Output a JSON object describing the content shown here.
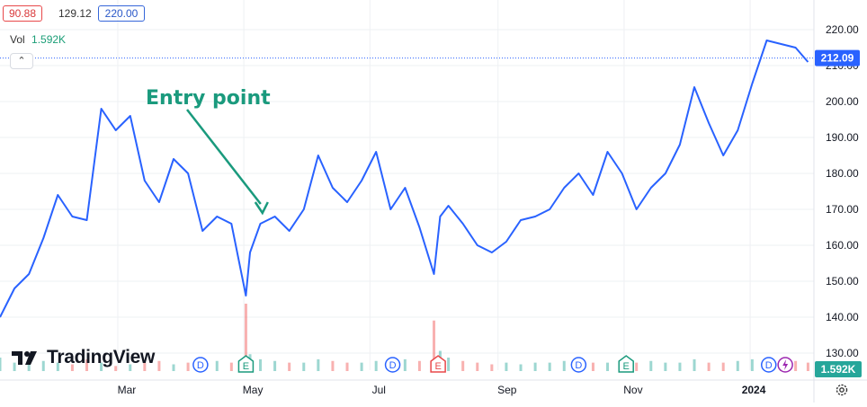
{
  "header": {
    "low_value": "90.88",
    "mid_value": "129.12",
    "high_value": "220.00",
    "vol_label": "Vol",
    "vol_value": "1.592K",
    "collapse_icon": "chevron-up-icon"
  },
  "annotation": {
    "text": "Entry point",
    "color": "#1a9a7d",
    "x": "2023-05-10",
    "y": 170
  },
  "brand": {
    "name": "TradingView",
    "logo_icon": "tradingview-logo-icon"
  },
  "price_label": {
    "value": "212.09",
    "bg": "#2962ff"
  },
  "vol_label": {
    "value": "1.592K",
    "bg": "#26a69a"
  },
  "settings_icon": "gear-icon",
  "events": [
    {
      "type": "D",
      "x": "2023-04-10"
    },
    {
      "type": "E",
      "x": "2023-05-02"
    },
    {
      "type": "D",
      "x": "2023-07-12"
    },
    {
      "type": "E",
      "x": "2023-08-03"
    },
    {
      "type": "D",
      "x": "2023-10-10"
    },
    {
      "type": "E",
      "x": "2023-11-02"
    },
    {
      "type": "D",
      "x": "2024-01-10"
    },
    {
      "type": "lightning",
      "x": "2024-01-18"
    }
  ],
  "chart_data": {
    "type": "line",
    "title": "",
    "xlabel": "",
    "ylabel": "",
    "x_ticks": [
      "Mar",
      "May",
      "Jul",
      "Sep",
      "Nov",
      "2024"
    ],
    "x_tick_dates": [
      "2023-03-01",
      "2023-05-01",
      "2023-07-01",
      "2023-09-01",
      "2023-11-01",
      "2024-01-01"
    ],
    "y_ticks": [
      130,
      140,
      150,
      160,
      170,
      180,
      190,
      200,
      210,
      220
    ],
    "ylim": [
      127.5,
      222
    ],
    "xlim": [
      "2023-01-03",
      "2024-01-31"
    ],
    "last_value": 212.09,
    "line_color": "#2962ff",
    "grid": true,
    "series": [
      {
        "x": [
          "2023-01-03",
          "2023-01-10",
          "2023-01-17",
          "2023-01-24",
          "2023-01-31",
          "2023-02-07",
          "2023-02-14",
          "2023-02-21",
          "2023-02-28",
          "2023-03-07",
          "2023-03-14",
          "2023-03-21",
          "2023-03-28",
          "2023-04-04",
          "2023-04-11",
          "2023-04-18",
          "2023-04-25",
          "2023-05-02",
          "2023-05-04",
          "2023-05-09",
          "2023-05-16",
          "2023-05-23",
          "2023-05-30",
          "2023-06-06",
          "2023-06-13",
          "2023-06-20",
          "2023-06-27",
          "2023-07-04",
          "2023-07-11",
          "2023-07-18",
          "2023-07-25",
          "2023-08-01",
          "2023-08-04",
          "2023-08-08",
          "2023-08-15",
          "2023-08-22",
          "2023-08-29",
          "2023-09-05",
          "2023-09-12",
          "2023-09-19",
          "2023-09-26",
          "2023-10-03",
          "2023-10-10",
          "2023-10-17",
          "2023-10-24",
          "2023-10-31",
          "2023-11-07",
          "2023-11-14",
          "2023-11-21",
          "2023-11-28",
          "2023-12-05",
          "2023-12-12",
          "2023-12-19",
          "2023-12-26",
          "2024-01-02",
          "2024-01-09",
          "2024-01-16",
          "2024-01-23",
          "2024-01-29"
        ],
        "y": [
          140,
          148,
          152,
          162,
          174,
          168,
          167,
          198,
          192,
          196,
          178,
          172,
          184,
          180,
          164,
          168,
          166,
          146,
          158,
          166,
          168,
          164,
          170,
          185,
          176,
          172,
          178,
          186,
          170,
          176,
          165,
          152,
          168,
          171,
          166,
          160,
          158,
          161,
          167,
          168,
          170,
          176,
          180,
          174,
          186,
          180,
          170,
          176,
          180,
          188,
          204,
          194,
          185,
          192,
          205,
          217,
          216,
          215,
          211
        ]
      }
    ],
    "volume": [
      8,
      5,
      4,
      6,
      5,
      4,
      7,
      5,
      3,
      4,
      5,
      6,
      4,
      5,
      7,
      6,
      5,
      40,
      10,
      7,
      6,
      5,
      5,
      7,
      6,
      5,
      5,
      6,
      5,
      7,
      6,
      30,
      12,
      8,
      6,
      5,
      4,
      5,
      4,
      5,
      5,
      6,
      4,
      5,
      5,
      4,
      5,
      6,
      5,
      5,
      7,
      5,
      5,
      6,
      7,
      6,
      5,
      6,
      5
    ]
  }
}
